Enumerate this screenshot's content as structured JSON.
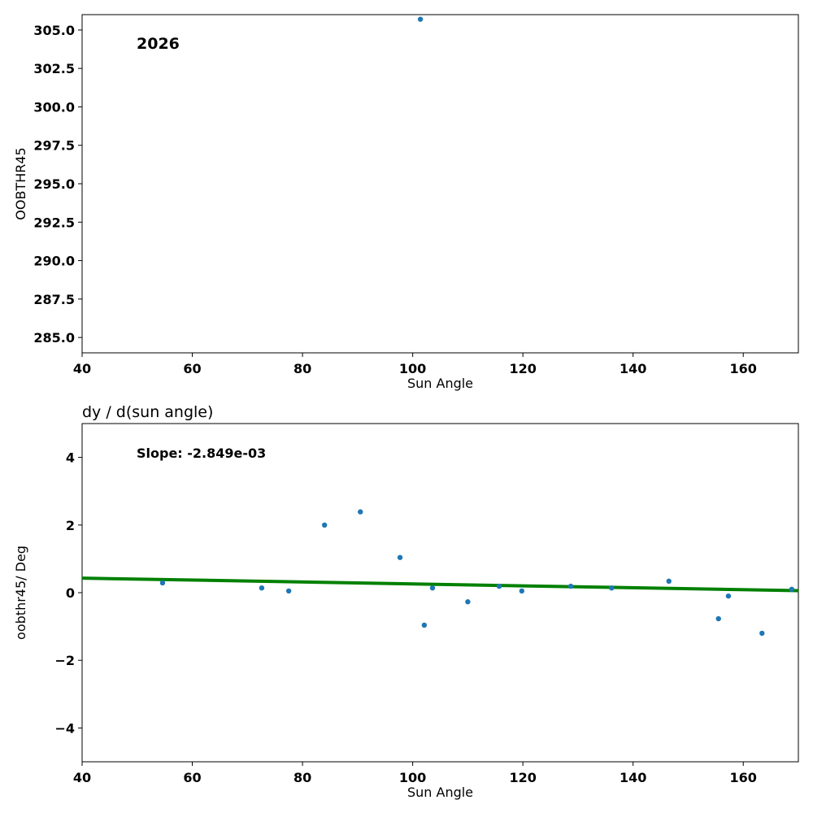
{
  "chart_data": [
    {
      "type": "scatter",
      "title": "",
      "annotation": "2026",
      "xlabel": "Sun Angle",
      "ylabel": "OOBTHR45",
      "xlim": [
        40,
        170
      ],
      "ylim": [
        284.0,
        306.0
      ],
      "xticks": [
        "40",
        "60",
        "80",
        "100",
        "120",
        "140",
        "160"
      ],
      "xtick_values": [
        40,
        60,
        80,
        100,
        120,
        140,
        160
      ],
      "yticks": [
        "285.0",
        "287.5",
        "290.0",
        "292.5",
        "295.0",
        "297.5",
        "300.0",
        "302.5",
        "305.0"
      ],
      "ytick_values": [
        285,
        287.5,
        290,
        292.5,
        295,
        297.5,
        300,
        302.5,
        305
      ],
      "points": [
        {
          "x": 101.4,
          "y": 305.7
        }
      ],
      "point_color": "#1f77b4"
    },
    {
      "type": "scatter",
      "title": "dy / d(sun angle)",
      "annotation": "Slope: -2.849e-03",
      "xlabel": "Sun Angle",
      "ylabel": "oobthr45/ Deg",
      "xlim": [
        40,
        170
      ],
      "ylim": [
        -5,
        5
      ],
      "xticks": [
        "40",
        "60",
        "80",
        "100",
        "120",
        "140",
        "160"
      ],
      "xtick_values": [
        40,
        60,
        80,
        100,
        120,
        140,
        160
      ],
      "yticks": [
        "−4",
        "−2",
        "0",
        "2",
        "4"
      ],
      "ytick_values": [
        -4,
        -2,
        0,
        2,
        4
      ],
      "points": [
        {
          "x": 54.6,
          "y": 0.29
        },
        {
          "x": 72.6,
          "y": 0.14
        },
        {
          "x": 77.5,
          "y": 0.05
        },
        {
          "x": 84.0,
          "y": 2.0
        },
        {
          "x": 90.5,
          "y": 2.39
        },
        {
          "x": 97.7,
          "y": 1.04
        },
        {
          "x": 103.6,
          "y": 0.14
        },
        {
          "x": 102.1,
          "y": -0.96
        },
        {
          "x": 110.0,
          "y": -0.27
        },
        {
          "x": 115.7,
          "y": 0.19
        },
        {
          "x": 119.8,
          "y": 0.05
        },
        {
          "x": 128.7,
          "y": 0.19
        },
        {
          "x": 136.1,
          "y": 0.14
        },
        {
          "x": 146.5,
          "y": 0.34
        },
        {
          "x": 155.5,
          "y": -0.77
        },
        {
          "x": 157.3,
          "y": -0.1
        },
        {
          "x": 163.4,
          "y": -1.2
        },
        {
          "x": 168.8,
          "y": 0.1
        }
      ],
      "point_color": "#1f77b4",
      "fit_line": {
        "x": [
          40,
          170
        ],
        "y": [
          0.43,
          0.06
        ],
        "color": "#008000"
      }
    }
  ]
}
